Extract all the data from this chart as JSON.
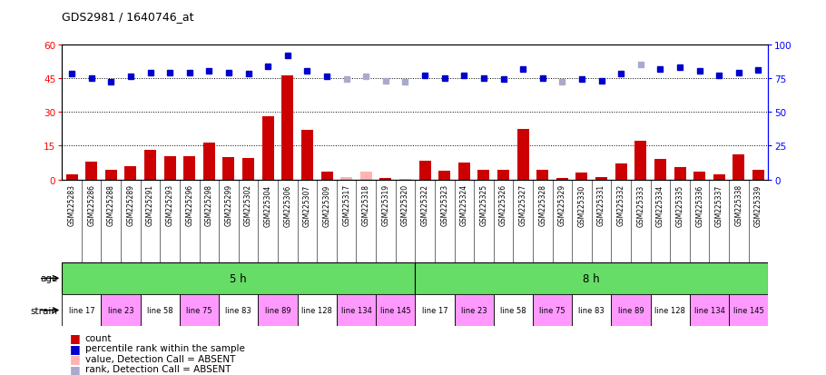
{
  "title": "GDS2981 / 1640746_at",
  "samples": [
    "GSM225283",
    "GSM225286",
    "GSM225288",
    "GSM225289",
    "GSM225291",
    "GSM225293",
    "GSM225296",
    "GSM225298",
    "GSM225299",
    "GSM225302",
    "GSM225304",
    "GSM225306",
    "GSM225307",
    "GSM225309",
    "GSM225317",
    "GSM225318",
    "GSM225319",
    "GSM225320",
    "GSM225322",
    "GSM225323",
    "GSM225324",
    "GSM225325",
    "GSM225326",
    "GSM225327",
    "GSM225328",
    "GSM225329",
    "GSM225330",
    "GSM225331",
    "GSM225332",
    "GSM225333",
    "GSM225334",
    "GSM225335",
    "GSM225336",
    "GSM225337",
    "GSM225338",
    "GSM225339"
  ],
  "counts": [
    2.5,
    8.0,
    4.5,
    6.0,
    13.0,
    10.5,
    10.5,
    16.5,
    10.0,
    9.5,
    28.0,
    46.0,
    22.0,
    3.5,
    1.0,
    3.5,
    0.5,
    0.2,
    8.5,
    4.0,
    7.5,
    4.5,
    4.5,
    22.5,
    4.5,
    0.5,
    3.0,
    1.0,
    7.0,
    17.0,
    9.0,
    5.5,
    3.5,
    2.5,
    11.0,
    4.5
  ],
  "percentile_ranks": [
    78,
    75,
    72,
    76,
    79,
    79,
    79,
    80,
    79,
    78,
    84,
    92,
    80,
    76,
    74,
    76,
    73,
    72,
    77,
    75,
    77,
    75,
    74,
    82,
    75,
    72,
    74,
    73,
    78,
    85,
    82,
    83,
    80,
    77,
    79,
    81
  ],
  "absent_count_indices": [
    14,
    15,
    17
  ],
  "absent_rank_indices": [
    14,
    15,
    16,
    17,
    25,
    29
  ],
  "age_groups": [
    {
      "label": "5 h",
      "start": 0,
      "end": 18
    },
    {
      "label": "8 h",
      "start": 18,
      "end": 36
    }
  ],
  "strain_groups": [
    {
      "label": "line 17",
      "start": 0,
      "end": 2,
      "color": "#ffffff"
    },
    {
      "label": "line 23",
      "start": 2,
      "end": 4,
      "color": "#ff99ff"
    },
    {
      "label": "line 58",
      "start": 4,
      "end": 6,
      "color": "#ffffff"
    },
    {
      "label": "line 75",
      "start": 6,
      "end": 8,
      "color": "#ff99ff"
    },
    {
      "label": "line 83",
      "start": 8,
      "end": 10,
      "color": "#ffffff"
    },
    {
      "label": "line 89",
      "start": 10,
      "end": 12,
      "color": "#ff99ff"
    },
    {
      "label": "line 128",
      "start": 12,
      "end": 14,
      "color": "#ffffff"
    },
    {
      "label": "line 134",
      "start": 14,
      "end": 16,
      "color": "#ff99ff"
    },
    {
      "label": "line 145",
      "start": 16,
      "end": 18,
      "color": "#ff99ff"
    },
    {
      "label": "line 17",
      "start": 18,
      "end": 20,
      "color": "#ffffff"
    },
    {
      "label": "line 23",
      "start": 20,
      "end": 22,
      "color": "#ff99ff"
    },
    {
      "label": "line 58",
      "start": 22,
      "end": 24,
      "color": "#ffffff"
    },
    {
      "label": "line 75",
      "start": 24,
      "end": 26,
      "color": "#ff99ff"
    },
    {
      "label": "line 83",
      "start": 26,
      "end": 28,
      "color": "#ffffff"
    },
    {
      "label": "line 89",
      "start": 28,
      "end": 30,
      "color": "#ff99ff"
    },
    {
      "label": "line 128",
      "start": 30,
      "end": 32,
      "color": "#ffffff"
    },
    {
      "label": "line 134",
      "start": 32,
      "end": 34,
      "color": "#ff99ff"
    },
    {
      "label": "line 145",
      "start": 34,
      "end": 36,
      "color": "#ff99ff"
    }
  ],
  "ylim_left": [
    0,
    60
  ],
  "ylim_right": [
    0,
    100
  ],
  "yticks_left": [
    0,
    15,
    30,
    45,
    60
  ],
  "yticks_right": [
    0,
    25,
    50,
    75,
    100
  ],
  "bar_color": "#cc0000",
  "absent_bar_color": "#ffb3b3",
  "rank_color": "#0000cc",
  "absent_rank_color": "#aaaacc",
  "age_color": "#66dd66",
  "bg_color": "#ffffff",
  "label_bg_color": "#cccccc"
}
